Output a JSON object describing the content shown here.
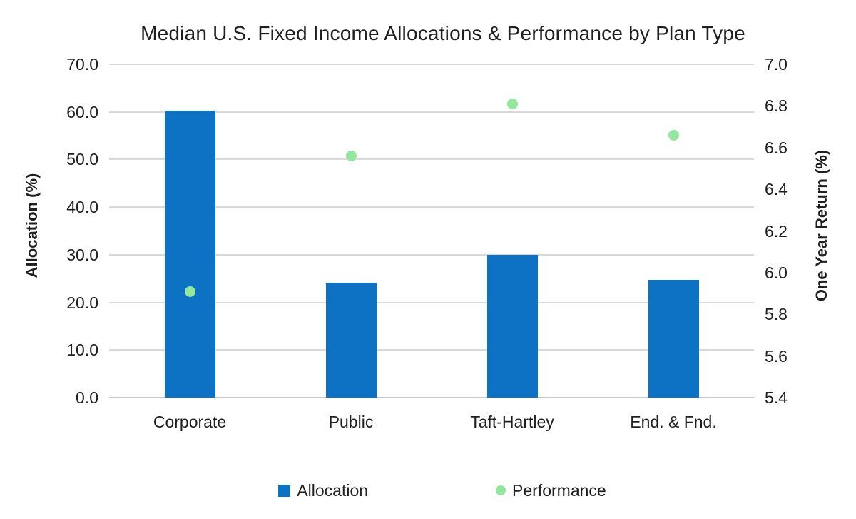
{
  "page": {
    "background_color": "#ffffff",
    "text_color": "#1f1f1f"
  },
  "chart_data": {
    "type": "combo",
    "title": "Median U.S. Fixed Income Allocations & Performance by Plan Type",
    "categories": [
      "Corporate",
      "Public",
      "Taft-Hartley",
      "End. & Fnd."
    ],
    "series": [
      {
        "name": "Allocation",
        "kind": "bar",
        "axis": "left",
        "color": "#0d72c4",
        "values": [
          60.3,
          24.2,
          30.0,
          24.7
        ]
      },
      {
        "name": "Performance",
        "kind": "scatter",
        "axis": "right",
        "color": "#92e79d",
        "values": [
          5.91,
          6.56,
          6.81,
          6.66
        ]
      }
    ],
    "left_axis": {
      "title": "Allocation (%)",
      "min": 0,
      "max": 70,
      "step": 10,
      "tick_labels": [
        "0.0",
        "10.0",
        "20.0",
        "30.0",
        "40.0",
        "50.0",
        "60.0",
        "70.0"
      ]
    },
    "right_axis": {
      "title": "One Year Return (%)",
      "min": 5.4,
      "max": 7.0,
      "step": 0.2,
      "tick_labels": [
        "5.4",
        "5.6",
        "5.8",
        "6.0",
        "6.2",
        "6.4",
        "6.6",
        "6.8",
        "7.0"
      ]
    },
    "grid": true,
    "gridline_color": "#d9d9d9",
    "axisline_color": "#c8c8c8",
    "legend": {
      "position": "bottom",
      "items": [
        {
          "label": "Allocation",
          "swatch": "square",
          "color": "#0d72c4"
        },
        {
          "label": "Performance",
          "swatch": "circle",
          "color": "#92e79d"
        }
      ]
    }
  }
}
